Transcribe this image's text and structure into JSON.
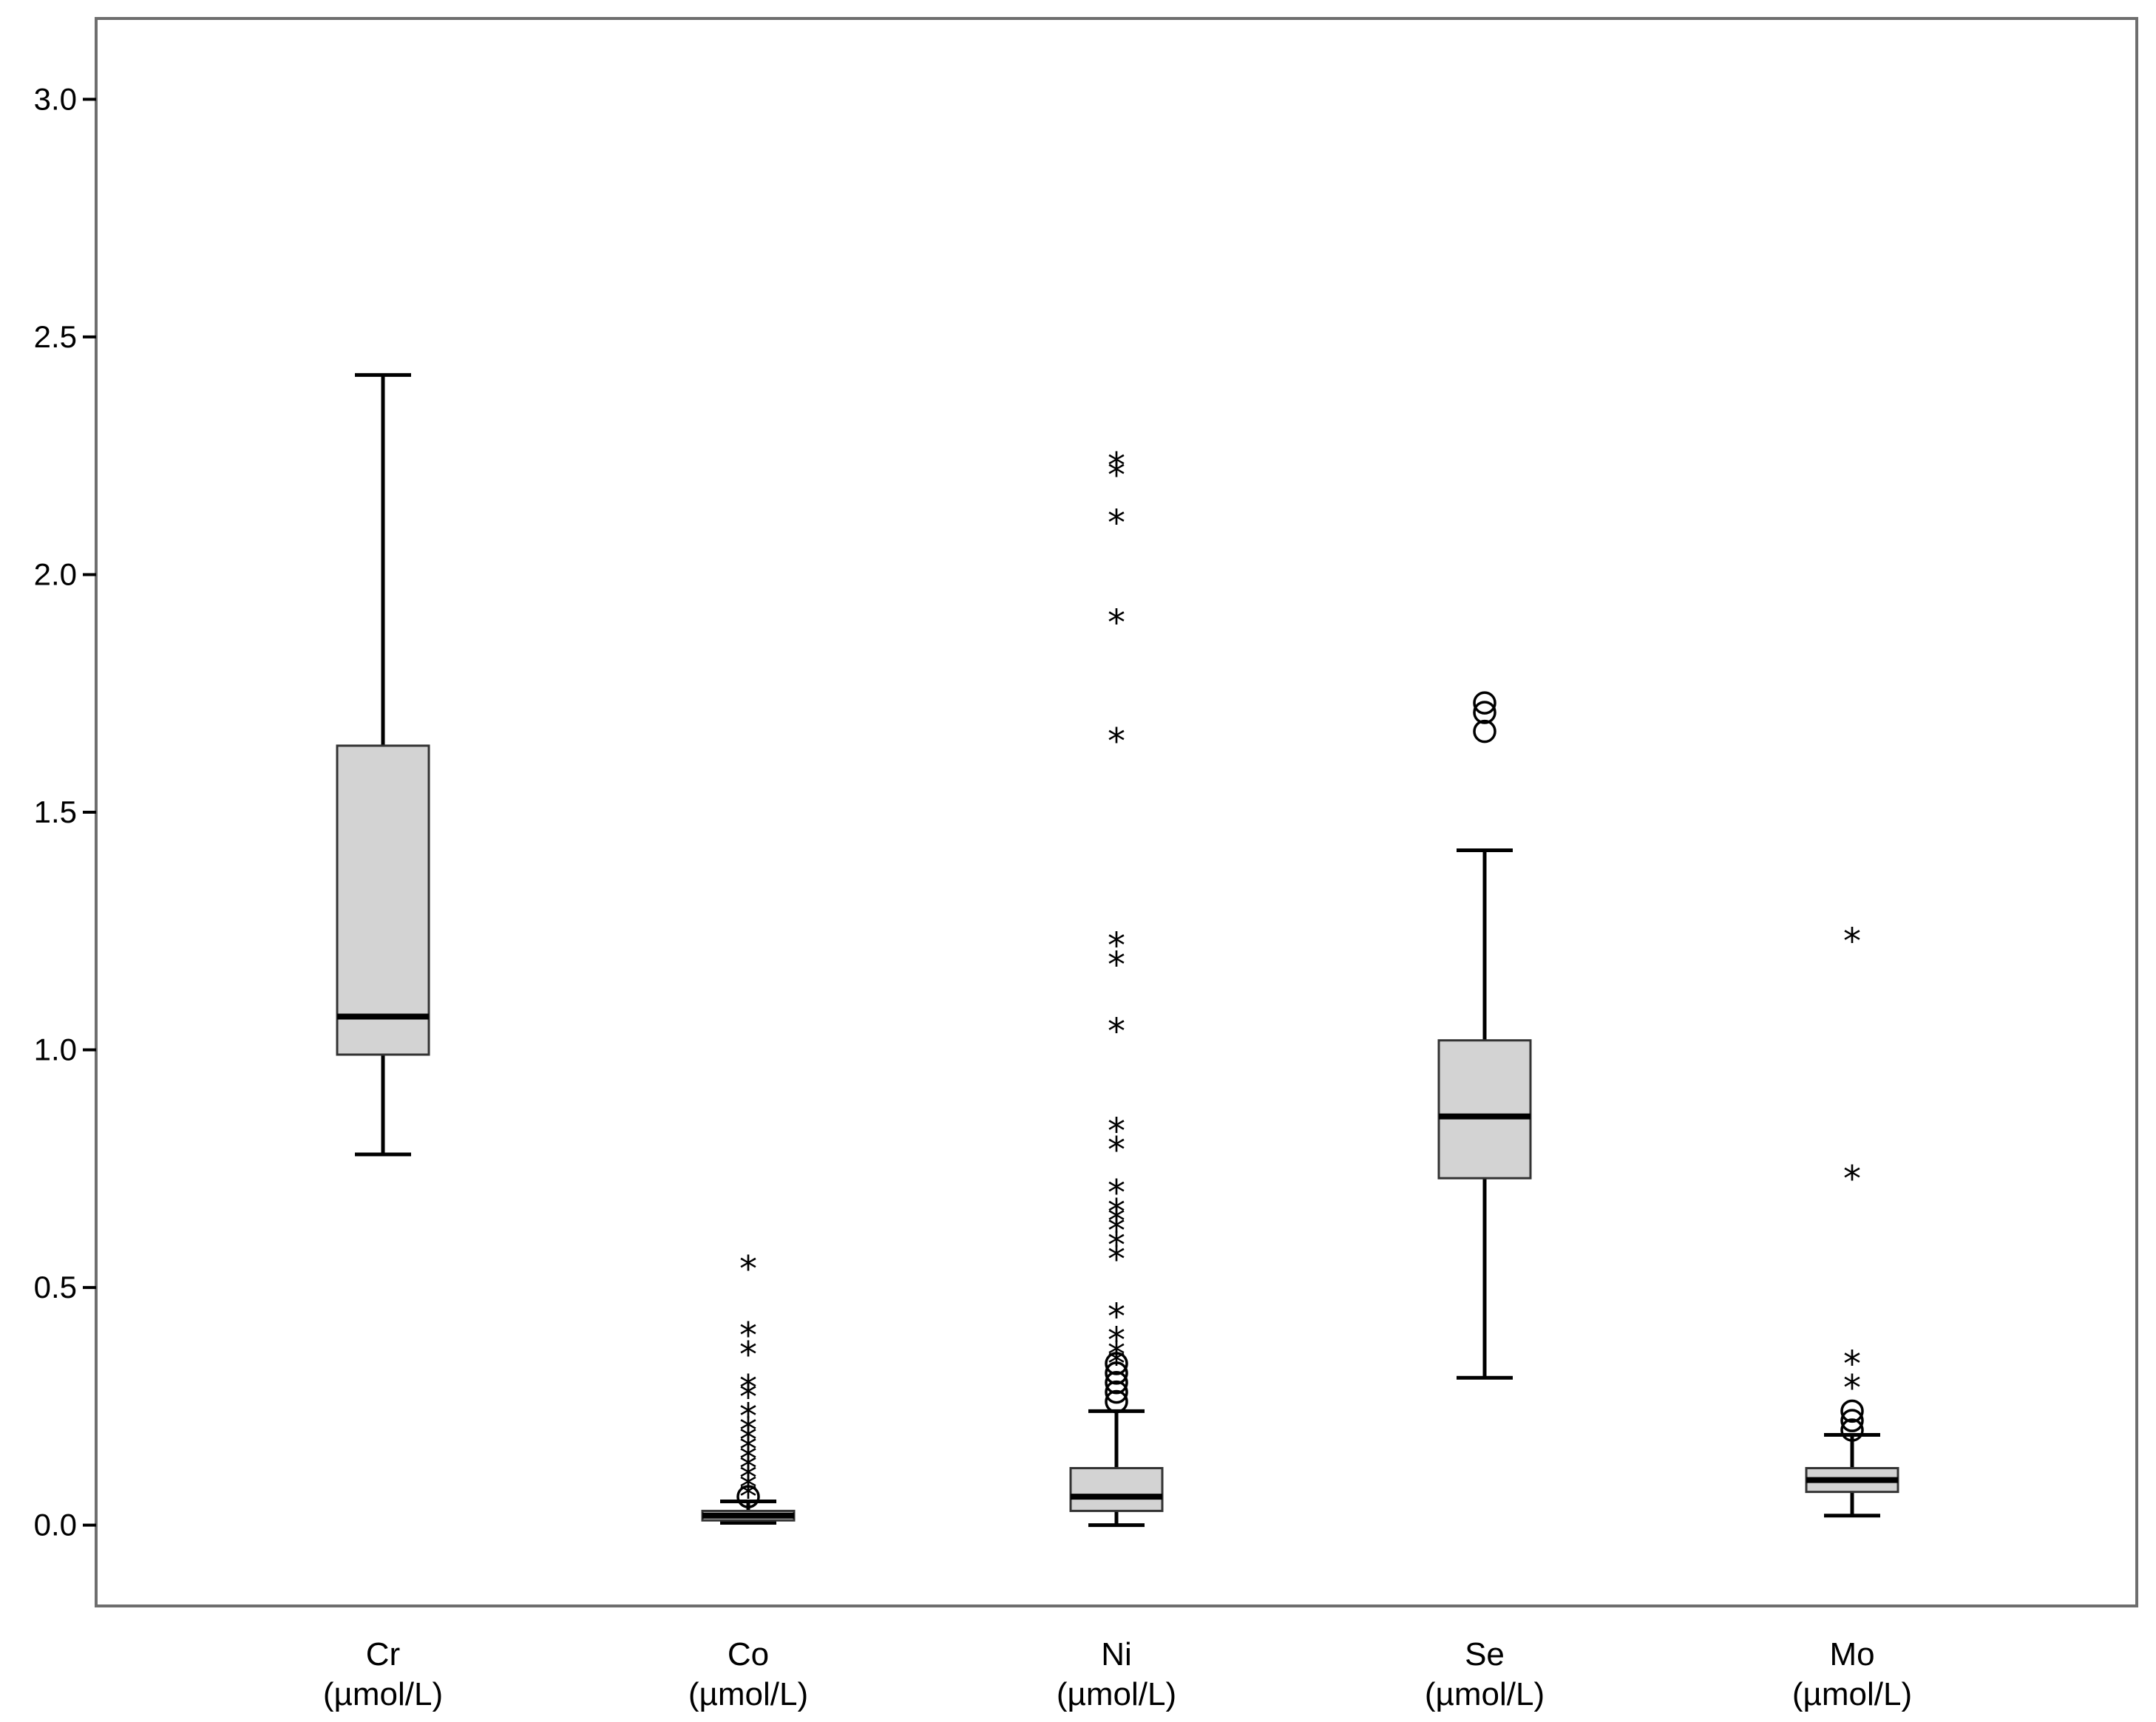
{
  "chart_data": {
    "type": "boxplot",
    "title": "",
    "xlabel": "",
    "ylabel": "",
    "ylim": [
      -0.17,
      3.17
    ],
    "yticks": [
      0.0,
      0.5,
      1.0,
      1.5,
      2.0,
      2.5,
      3.0
    ],
    "ytick_labels": [
      "0.0",
      "0.5",
      "1.0",
      "1.5",
      "2.0",
      "2.5",
      "3.0"
    ],
    "grid": false,
    "legend": "none",
    "box_color": "#d3d3d3",
    "line_color": "#000000",
    "categories": [
      {
        "name": "Cr",
        "unit": "(µmol/L)",
        "whisker_low": 0.78,
        "q1": 0.99,
        "median": 1.07,
        "q3": 1.64,
        "whisker_high": 2.42,
        "outliers_circle": [],
        "outliers_star": []
      },
      {
        "name": "Co",
        "unit": "(µmol/L)",
        "whisker_low": 0.005,
        "q1": 0.01,
        "median": 0.02,
        "q3": 0.03,
        "whisker_high": 0.05,
        "outliers_circle": [
          0.06
        ],
        "outliers_star": [
          0.08,
          0.1,
          0.12,
          0.14,
          0.16,
          0.18,
          0.2,
          0.22,
          0.25,
          0.29,
          0.31,
          0.38,
          0.42,
          0.56
        ]
      },
      {
        "name": "Ni",
        "unit": "(µmol/L)",
        "whisker_low": 0.0,
        "q1": 0.03,
        "median": 0.06,
        "q3": 0.12,
        "whisker_high": 0.24,
        "outliers_circle": [
          0.26,
          0.28,
          0.3,
          0.32,
          0.34
        ],
        "outliers_star": [
          0.36,
          0.38,
          0.41,
          0.46,
          0.58,
          0.61,
          0.64,
          0.66,
          0.68,
          0.72,
          0.81,
          0.85,
          1.06,
          1.2,
          1.24,
          1.67,
          1.92,
          2.13,
          2.23,
          2.25
        ]
      },
      {
        "name": "Se",
        "unit": "(µmol/L)",
        "whisker_low": 0.31,
        "q1": 0.73,
        "median": 0.86,
        "q3": 1.02,
        "whisker_high": 1.42,
        "outliers_circle": [
          1.67,
          1.71,
          1.73
        ],
        "outliers_star": []
      },
      {
        "name": "Mo",
        "unit": "(µmol/L)",
        "whisker_low": 0.02,
        "q1": 0.07,
        "median": 0.095,
        "q3": 0.12,
        "whisker_high": 0.19,
        "outliers_circle": [
          0.2,
          0.22,
          0.24
        ],
        "outliers_star": [
          0.31,
          0.36,
          0.75,
          1.25
        ]
      }
    ]
  }
}
